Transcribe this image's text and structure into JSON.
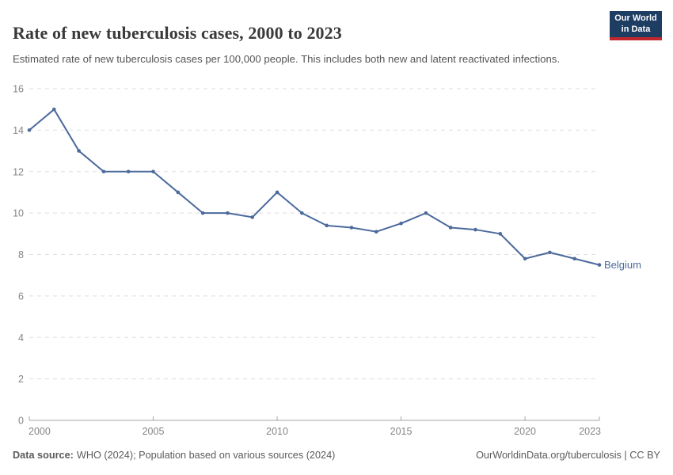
{
  "header": {
    "title": "Rate of new tuberculosis cases, 2000 to 2023",
    "subtitle": "Estimated rate of new tuberculosis cases per 100,000 people. This includes both new and latent reactivated infections.",
    "logo": {
      "line1": "Our World",
      "line2": "in Data"
    }
  },
  "chart_data": {
    "type": "line",
    "title": "Rate of new tuberculosis cases, 2000 to 2023",
    "x": [
      2000,
      2001,
      2002,
      2003,
      2004,
      2005,
      2006,
      2007,
      2008,
      2009,
      2010,
      2011,
      2012,
      2013,
      2014,
      2015,
      2016,
      2017,
      2018,
      2019,
      2020,
      2021,
      2022,
      2023
    ],
    "series": [
      {
        "name": "Belgium",
        "color": "#4C6A9C",
        "values": [
          14,
          15,
          13,
          12,
          12,
          12,
          11,
          10,
          10,
          9.8,
          11,
          10,
          9.4,
          9.3,
          9.1,
          9.5,
          10,
          9.3,
          9.2,
          9,
          7.8,
          8.1,
          7.8,
          7.5
        ]
      }
    ],
    "xlabel": "",
    "ylabel": "",
    "xlim": [
      2000,
      2023
    ],
    "ylim": [
      0,
      16
    ],
    "yticks": [
      0,
      2,
      4,
      6,
      8,
      10,
      12,
      14,
      16
    ],
    "xticks": [
      2000,
      2005,
      2010,
      2015,
      2020,
      2023
    ],
    "grid": "horizontal-dashed",
    "legend": "end-of-line-label"
  },
  "footer": {
    "source_label": "Data source:",
    "source_text": "WHO (2024); Population based on various sources (2024)",
    "link_text": "OurWorldinData.org/tuberculosis | CC BY"
  },
  "colors": {
    "accent_line": "#4C6A9C",
    "logo_bg": "#1d3d63",
    "logo_red": "#c1272d",
    "grid": "#dddddd",
    "axis": "#a5a5a5",
    "tick_label": "#858585"
  }
}
